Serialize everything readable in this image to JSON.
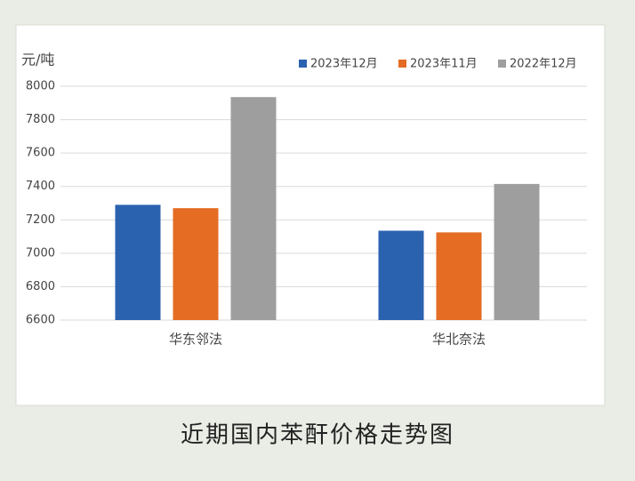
{
  "chart_data": {
    "type": "bar",
    "y_label": "元/吨",
    "caption": "近期国内苯酐价格走势图",
    "categories": [
      "华东邻法",
      "华北奈法"
    ],
    "series": [
      {
        "name": "2023年12月",
        "color": "#2a62b0",
        "values": [
          7290,
          7135
        ]
      },
      {
        "name": "2023年11月",
        "color": "#e46c23",
        "values": [
          7270,
          7125
        ]
      },
      {
        "name": "2022年12月",
        "color": "#9e9e9e",
        "values": [
          7935,
          7415
        ]
      }
    ],
    "ylim": [
      6600,
      8000
    ],
    "yticks": [
      6600,
      6800,
      7000,
      7200,
      7400,
      7600,
      7800,
      8000
    ],
    "grid": true,
    "legend": "top-right"
  }
}
